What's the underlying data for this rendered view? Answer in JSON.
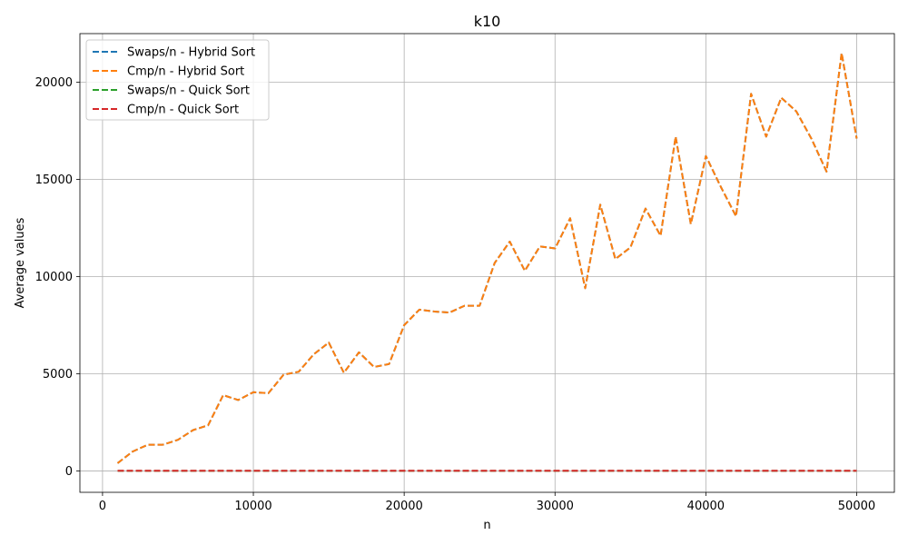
{
  "chart_data": {
    "type": "line",
    "title": "k10",
    "xlabel": "n",
    "ylabel": "Average values",
    "xlim": [
      -1500,
      52500
    ],
    "ylim": [
      -1100,
      22500
    ],
    "xticks": [
      0,
      10000,
      20000,
      30000,
      40000,
      50000
    ],
    "xtick_labels": [
      "0",
      "10000",
      "20000",
      "30000",
      "40000",
      "50000"
    ],
    "yticks": [
      0,
      5000,
      10000,
      15000,
      20000
    ],
    "ytick_labels": [
      "0",
      "5000",
      "10000",
      "15000",
      "20000"
    ],
    "grid": true,
    "legend_position": "top-left",
    "x": [
      1000,
      2000,
      3000,
      4000,
      5000,
      6000,
      7000,
      8000,
      9000,
      10000,
      11000,
      12000,
      13000,
      14000,
      15000,
      16000,
      17000,
      18000,
      19000,
      20000,
      21000,
      22000,
      23000,
      24000,
      25000,
      26000,
      27000,
      28000,
      29000,
      30000,
      31000,
      32000,
      33000,
      34000,
      35000,
      36000,
      37000,
      38000,
      39000,
      40000,
      41000,
      42000,
      43000,
      44000,
      45000,
      46000,
      47000,
      48000,
      49000,
      50000
    ],
    "series": [
      {
        "name": "Swaps/n - Hybrid Sort",
        "color": "#1f77b4",
        "style": "dashed",
        "values": [
          400,
          1000,
          1350,
          1350,
          1600,
          2100,
          2350,
          3900,
          3650,
          4050,
          4000,
          4950,
          5100,
          6000,
          6600,
          5050,
          6100,
          5350,
          5500,
          7500,
          8300,
          8200,
          8150,
          8500,
          8500,
          10700,
          11800,
          10300,
          11550,
          11450,
          13000,
          9400,
          13700,
          10900,
          11500,
          13500,
          12100,
          17200,
          12700,
          16200,
          14600,
          13100,
          19400,
          17200,
          19200,
          18500,
          17100,
          15400,
          21500,
          17100
        ]
      },
      {
        "name": "Cmp/n - Hybrid Sort",
        "color": "#ff7f0e",
        "style": "dashed",
        "values": [
          400,
          1000,
          1350,
          1350,
          1600,
          2100,
          2350,
          3900,
          3650,
          4050,
          4000,
          4950,
          5100,
          6000,
          6600,
          5050,
          6100,
          5350,
          5500,
          7500,
          8300,
          8200,
          8150,
          8500,
          8500,
          10700,
          11800,
          10300,
          11550,
          11450,
          13000,
          9400,
          13700,
          10900,
          11500,
          13500,
          12100,
          17200,
          12700,
          16200,
          14600,
          13100,
          19400,
          17200,
          19200,
          18500,
          17100,
          15400,
          21500,
          17100
        ]
      },
      {
        "name": "Swaps/n - Quick Sort",
        "color": "#2ca02c",
        "style": "dashed",
        "values": [
          5,
          5,
          5,
          5,
          5,
          5,
          5,
          5,
          5,
          5,
          5,
          5,
          5,
          5,
          5,
          5,
          5,
          5,
          5,
          5,
          5,
          5,
          5,
          5,
          5,
          5,
          5,
          5,
          5,
          5,
          5,
          5,
          5,
          5,
          5,
          5,
          5,
          5,
          5,
          5,
          5,
          5,
          5,
          5,
          5,
          5,
          5,
          5,
          5,
          5
        ]
      },
      {
        "name": "Cmp/n - Quick Sort",
        "color": "#d62728",
        "style": "dashed",
        "values": [
          12,
          12,
          12,
          12,
          12,
          12,
          12,
          12,
          12,
          12,
          12,
          12,
          12,
          12,
          12,
          12,
          12,
          12,
          12,
          12,
          12,
          12,
          12,
          12,
          12,
          12,
          12,
          12,
          12,
          12,
          12,
          12,
          12,
          12,
          12,
          12,
          12,
          12,
          12,
          12,
          12,
          12,
          12,
          12,
          12,
          12,
          12,
          12,
          12,
          12
        ]
      }
    ]
  }
}
